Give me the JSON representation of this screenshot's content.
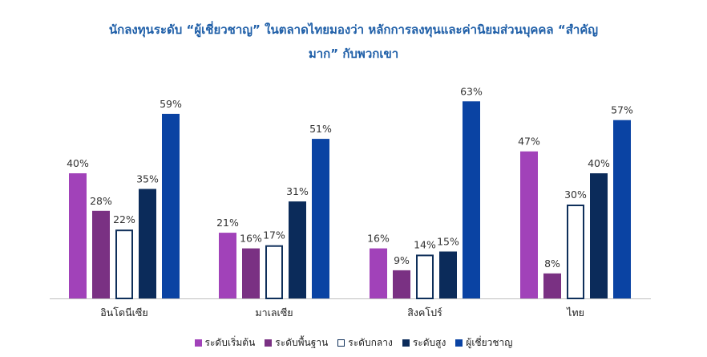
{
  "chart_data": {
    "type": "bar",
    "title_line1": "นักลงทุนระดับ “ผู้เชี่ยวชาญ” ในตลาดไทยมองว่า หลักการลงทุนและค่านิยมส่วนบุคคล “สำคัญ",
    "title_line2": "มาก” กับพวกเขา",
    "categories": [
      "อินโดนีเซีย",
      "มาเลเซีย",
      "สิงคโปร์",
      "ไทย"
    ],
    "series": [
      {
        "name": "ระดับเริ่มต้น",
        "values": [
          40,
          21,
          16,
          47
        ],
        "color": "#a142b9",
        "hollow": false
      },
      {
        "name": "ระดับพื้นฐาน",
        "values": [
          28,
          16,
          9,
          8
        ],
        "color": "#7a3183",
        "hollow": false
      },
      {
        "name": "ระดับกลาง",
        "values": [
          22,
          17,
          14,
          30
        ],
        "color": "#0f2f5a",
        "hollow": true
      },
      {
        "name": "ระดับสูง",
        "values": [
          35,
          31,
          15,
          40
        ],
        "color": "#0b2b5a",
        "hollow": false
      },
      {
        "name": "ผู้เชี่ยวชาญ",
        "values": [
          59,
          51,
          63,
          57
        ],
        "color": "#0a43a3",
        "hollow": false
      }
    ],
    "value_suffix": "%",
    "ylim": [
      0,
      65
    ],
    "grid": false,
    "legend_position": "bottom"
  }
}
